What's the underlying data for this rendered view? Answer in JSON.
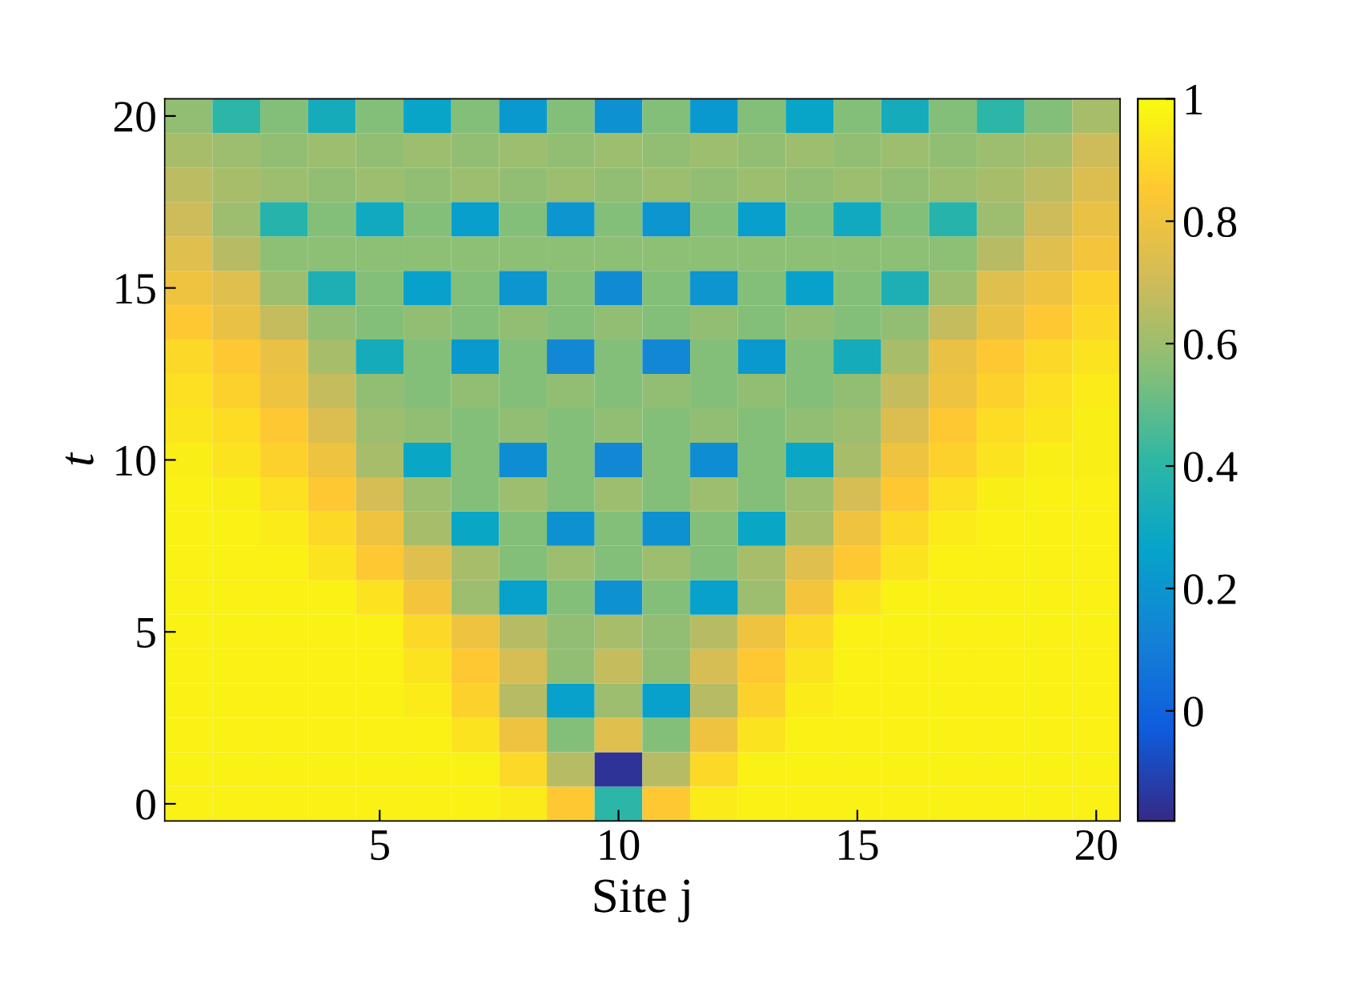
{
  "chart_data": {
    "type": "heatmap",
    "xlabel": "Site j",
    "ylabel": "t",
    "categories": [
      null,
      null,
      null,
      null,
      "5",
      null,
      null,
      null,
      null,
      "10",
      null,
      null,
      null,
      null,
      "15",
      null,
      null,
      null,
      null,
      "20"
    ],
    "y_categories": [
      "20",
      null,
      null,
      null,
      null,
      "15",
      null,
      null,
      null,
      null,
      "10",
      null,
      null,
      null,
      null,
      "5",
      null,
      null,
      null,
      null,
      "0"
    ],
    "cells": [
      [
        0.58,
        0.4,
        0.55,
        0.32,
        0.55,
        0.27,
        0.55,
        0.22,
        0.55,
        0.18,
        0.55,
        0.22,
        0.55,
        0.27,
        0.55,
        0.32,
        0.55,
        0.4,
        0.55,
        0.62
      ],
      [
        0.62,
        0.6,
        0.58,
        0.6,
        0.58,
        0.6,
        0.58,
        0.6,
        0.58,
        0.6,
        0.58,
        0.6,
        0.58,
        0.6,
        0.58,
        0.6,
        0.58,
        0.6,
        0.62,
        0.7
      ],
      [
        0.66,
        0.62,
        0.6,
        0.58,
        0.6,
        0.58,
        0.6,
        0.58,
        0.6,
        0.58,
        0.6,
        0.58,
        0.6,
        0.58,
        0.6,
        0.58,
        0.6,
        0.62,
        0.66,
        0.74
      ],
      [
        0.7,
        0.6,
        0.38,
        0.55,
        0.3,
        0.55,
        0.24,
        0.55,
        0.2,
        0.55,
        0.2,
        0.55,
        0.24,
        0.55,
        0.3,
        0.55,
        0.38,
        0.6,
        0.7,
        0.78
      ],
      [
        0.75,
        0.65,
        0.57,
        0.57,
        0.57,
        0.57,
        0.57,
        0.57,
        0.57,
        0.57,
        0.57,
        0.57,
        0.57,
        0.57,
        0.57,
        0.57,
        0.57,
        0.65,
        0.75,
        0.82
      ],
      [
        0.8,
        0.75,
        0.6,
        0.35,
        0.55,
        0.25,
        0.55,
        0.2,
        0.55,
        0.16,
        0.55,
        0.2,
        0.55,
        0.25,
        0.55,
        0.35,
        0.6,
        0.75,
        0.8,
        0.88
      ],
      [
        0.85,
        0.78,
        0.68,
        0.58,
        0.55,
        0.58,
        0.55,
        0.58,
        0.55,
        0.58,
        0.55,
        0.58,
        0.55,
        0.58,
        0.55,
        0.58,
        0.68,
        0.78,
        0.85,
        0.9
      ],
      [
        0.9,
        0.85,
        0.78,
        0.62,
        0.32,
        0.55,
        0.22,
        0.55,
        0.14,
        0.55,
        0.14,
        0.55,
        0.22,
        0.55,
        0.32,
        0.62,
        0.78,
        0.85,
        0.9,
        0.93
      ],
      [
        0.92,
        0.88,
        0.8,
        0.68,
        0.58,
        0.55,
        0.58,
        0.55,
        0.58,
        0.55,
        0.58,
        0.55,
        0.58,
        0.55,
        0.58,
        0.68,
        0.8,
        0.88,
        0.92,
        0.95
      ],
      [
        0.94,
        0.91,
        0.85,
        0.74,
        0.6,
        0.58,
        0.55,
        0.58,
        0.55,
        0.58,
        0.55,
        0.58,
        0.55,
        0.58,
        0.6,
        0.74,
        0.85,
        0.91,
        0.94,
        0.96
      ],
      [
        0.96,
        0.93,
        0.88,
        0.8,
        0.62,
        0.28,
        0.55,
        0.17,
        0.55,
        0.14,
        0.55,
        0.17,
        0.55,
        0.28,
        0.62,
        0.8,
        0.88,
        0.93,
        0.96,
        0.96
      ],
      [
        0.97,
        0.96,
        0.92,
        0.85,
        0.72,
        0.6,
        0.55,
        0.6,
        0.55,
        0.6,
        0.55,
        0.6,
        0.55,
        0.6,
        0.72,
        0.85,
        0.92,
        0.96,
        0.97,
        0.97
      ],
      [
        0.97,
        0.97,
        0.95,
        0.9,
        0.8,
        0.62,
        0.28,
        0.55,
        0.18,
        0.55,
        0.18,
        0.55,
        0.28,
        0.62,
        0.8,
        0.9,
        0.95,
        0.97,
        0.97,
        0.97
      ],
      [
        0.97,
        0.97,
        0.97,
        0.93,
        0.85,
        0.75,
        0.62,
        0.55,
        0.6,
        0.55,
        0.6,
        0.55,
        0.62,
        0.75,
        0.85,
        0.93,
        0.97,
        0.97,
        0.97,
        0.97
      ],
      [
        0.97,
        0.97,
        0.97,
        0.97,
        0.93,
        0.82,
        0.6,
        0.25,
        0.55,
        0.18,
        0.55,
        0.25,
        0.6,
        0.82,
        0.93,
        0.97,
        0.97,
        0.97,
        0.97,
        0.97
      ],
      [
        0.97,
        0.97,
        0.97,
        0.97,
        0.97,
        0.9,
        0.8,
        0.65,
        0.58,
        0.62,
        0.58,
        0.65,
        0.8,
        0.9,
        0.97,
        0.97,
        0.97,
        0.97,
        0.97,
        0.97
      ],
      [
        0.97,
        0.97,
        0.97,
        0.97,
        0.97,
        0.93,
        0.85,
        0.72,
        0.58,
        0.68,
        0.58,
        0.72,
        0.85,
        0.93,
        0.97,
        0.97,
        0.97,
        0.97,
        0.97,
        0.97
      ],
      [
        0.97,
        0.97,
        0.97,
        0.97,
        0.97,
        0.95,
        0.88,
        0.65,
        0.25,
        0.6,
        0.25,
        0.65,
        0.88,
        0.95,
        0.97,
        0.97,
        0.97,
        0.97,
        0.97,
        0.97
      ],
      [
        0.97,
        0.97,
        0.97,
        0.97,
        0.97,
        0.97,
        0.93,
        0.8,
        0.55,
        0.75,
        0.55,
        0.8,
        0.93,
        0.97,
        0.97,
        0.97,
        0.97,
        0.97,
        0.97,
        0.97
      ],
      [
        0.97,
        0.97,
        0.97,
        0.97,
        0.97,
        0.97,
        0.97,
        0.9,
        0.65,
        -0.15,
        0.65,
        0.9,
        0.97,
        0.97,
        0.97,
        0.97,
        0.97,
        0.97,
        0.97,
        0.97
      ],
      [
        0.97,
        0.97,
        0.97,
        0.97,
        0.97,
        0.97,
        0.97,
        0.95,
        0.85,
        0.4,
        0.85,
        0.95,
        0.97,
        0.97,
        0.97,
        0.97,
        0.97,
        0.97,
        0.97,
        0.97
      ]
    ],
    "clim": [
      -0.18,
      1
    ],
    "cticks": [
      0,
      0.2,
      0.4,
      0.6,
      0.8,
      1
    ],
    "grid": false
  }
}
